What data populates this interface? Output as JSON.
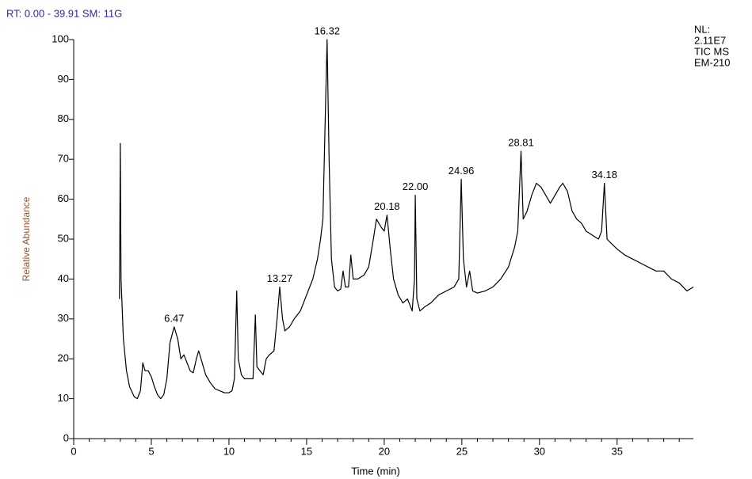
{
  "chart_data": {
    "type": "line",
    "title": "RT: 0.00 - 39.91   SM: 11G",
    "notes": [
      "NL:",
      "2.11E7",
      "TIC  MS",
      "EM-210"
    ],
    "x_label": "Time (min)",
    "y_label": "Relative Abundance",
    "color": "#000000",
    "xlim": [
      0,
      39.91
    ],
    "ylim": [
      0,
      100
    ],
    "xticks": [
      0,
      5,
      10,
      15,
      20,
      25,
      30,
      35
    ],
    "xminorticks": [
      1,
      2,
      3,
      4,
      6,
      7,
      8,
      9,
      11,
      12,
      13,
      14,
      16,
      17,
      18,
      19,
      21,
      22,
      23,
      24,
      26,
      27,
      28,
      29,
      31,
      32,
      33,
      34,
      36,
      37,
      38,
      39
    ],
    "yticks": [
      0,
      10,
      20,
      30,
      40,
      50,
      60,
      70,
      80,
      90,
      100
    ],
    "x": [
      2.95,
      3.0,
      3.05,
      3.2,
      3.4,
      3.6,
      3.9,
      4.1,
      4.3,
      4.45,
      4.6,
      4.8,
      5.0,
      5.2,
      5.4,
      5.6,
      5.8,
      6.0,
      6.2,
      6.47,
      6.7,
      6.9,
      7.1,
      7.3,
      7.5,
      7.7,
      7.9,
      8.05,
      8.2,
      8.5,
      8.8,
      9.1,
      9.4,
      9.7,
      10.0,
      10.2,
      10.35,
      10.5,
      10.6,
      10.8,
      11.0,
      11.3,
      11.55,
      11.7,
      11.8,
      12.0,
      12.2,
      12.4,
      12.6,
      12.9,
      13.1,
      13.27,
      13.45,
      13.6,
      13.9,
      14.2,
      14.6,
      15.0,
      15.4,
      15.7,
      15.9,
      16.05,
      16.2,
      16.32,
      16.45,
      16.6,
      16.8,
      17.0,
      17.2,
      17.35,
      17.5,
      17.7,
      17.85,
      18.0,
      18.3,
      18.7,
      19.0,
      19.3,
      19.5,
      19.8,
      20.0,
      20.18,
      20.4,
      20.6,
      20.9,
      21.2,
      21.5,
      21.8,
      21.95,
      22.0,
      22.1,
      22.3,
      22.6,
      23.0,
      23.5,
      24.0,
      24.5,
      24.8,
      24.96,
      25.1,
      25.3,
      25.5,
      25.7,
      26.0,
      26.5,
      27.0,
      27.5,
      28.0,
      28.4,
      28.6,
      28.81,
      28.95,
      29.2,
      29.5,
      29.8,
      30.1,
      30.4,
      30.7,
      31.0,
      31.3,
      31.5,
      31.8,
      32.1,
      32.4,
      32.7,
      33.0,
      33.4,
      33.8,
      34.0,
      34.18,
      34.35,
      34.6,
      35.0,
      35.5,
      36.0,
      36.5,
      37.0,
      37.5,
      38.0,
      38.5,
      39.0,
      39.5,
      39.91
    ],
    "values": [
      35,
      74,
      40,
      25,
      17,
      13,
      10.5,
      10,
      12,
      19,
      17,
      17,
      15.5,
      13,
      11,
      10,
      11,
      15,
      24,
      28,
      25,
      20,
      21,
      19,
      17,
      16.5,
      20,
      22,
      20,
      16,
      14,
      12.5,
      12,
      11.5,
      11.5,
      12,
      15,
      37,
      20,
      16,
      15,
      15,
      15,
      31,
      18,
      17,
      16,
      20,
      21,
      22,
      30,
      38,
      30,
      27,
      28,
      30,
      32,
      36,
      40,
      45,
      50,
      55,
      80,
      100,
      70,
      45,
      38,
      37,
      37.5,
      42,
      38,
      38,
      46,
      40,
      40,
      41,
      43,
      50,
      55,
      53,
      52,
      56,
      47,
      40,
      36,
      34,
      35,
      32,
      40,
      61,
      35,
      32,
      33,
      34,
      36,
      37,
      38,
      40,
      65,
      45,
      38,
      42,
      37,
      36.5,
      37,
      38,
      40,
      43,
      48,
      52,
      72,
      55,
      57,
      61,
      64,
      63,
      61,
      59,
      61,
      63,
      64,
      62,
      57,
      55,
      54,
      52,
      51,
      50,
      52,
      64,
      50,
      49,
      47.5,
      46,
      45,
      44,
      43,
      42,
      42,
      40,
      39,
      37,
      38
    ],
    "annotations": [
      {
        "text": "6.47",
        "x": 6.47,
        "y": 28
      },
      {
        "text": "13.27",
        "x": 13.27,
        "y": 38
      },
      {
        "text": "16.32",
        "x": 16.32,
        "y": 100
      },
      {
        "text": "20.18",
        "x": 20.18,
        "y": 56
      },
      {
        "text": "22.00",
        "x": 22.0,
        "y": 61
      },
      {
        "text": "24.96",
        "x": 24.96,
        "y": 65
      },
      {
        "text": "28.81",
        "x": 28.81,
        "y": 72
      },
      {
        "text": "34.18",
        "x": 34.18,
        "y": 64
      }
    ]
  }
}
